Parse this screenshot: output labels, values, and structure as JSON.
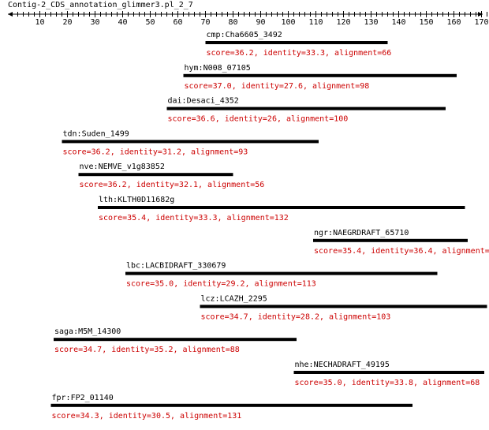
{
  "title": "Contig-2_CDS_annotation_glimmer3.pl_2_7",
  "colors": {
    "score": "#cc0000",
    "bar": "#000000",
    "axis": "#000000"
  },
  "axis": {
    "min": 1,
    "max": 172,
    "ticks": [
      10,
      20,
      30,
      40,
      50,
      60,
      70,
      80,
      90,
      100,
      110,
      120,
      130,
      140,
      150,
      160,
      170
    ]
  },
  "hits": [
    {
      "name": "cmp:Cha6605_3492",
      "start": 71,
      "end": 136,
      "score": "score=36.2, identity=33.3, alignment=66"
    },
    {
      "name": "hym:N008_07105",
      "start": 63,
      "end": 161,
      "score": "score=37.0, identity=27.6, alignment=98"
    },
    {
      "name": "dai:Desaci_4352",
      "start": 57,
      "end": 157,
      "score": "score=36.6, identity=26, alignment=100"
    },
    {
      "name": "tdn:Suden_1499",
      "start": 19,
      "end": 111,
      "score": "score=36.2, identity=31.2, alignment=93"
    },
    {
      "name": "nve:NEMVE_v1g83852",
      "start": 25,
      "end": 80,
      "score": "score=36.2, identity=32.1, alignment=56"
    },
    {
      "name": "lth:KLTH0D11682g",
      "start": 32,
      "end": 164,
      "score": "score=35.4, identity=33.3, alignment=132"
    },
    {
      "name": "ngr:NAEGRDRAFT_65710",
      "start": 110,
      "end": 165,
      "score": "score=35.4, identity=36.4, alignment=55"
    },
    {
      "name": "lbc:LACBIDRAFT_330679",
      "start": 42,
      "end": 154,
      "score": "score=35.0, identity=29.2, alignment=113"
    },
    {
      "name": "lcz:LCAZH_2295",
      "start": 69,
      "end": 172,
      "score": "score=34.7, identity=28.2, alignment=103"
    },
    {
      "name": "saga:M5M_14300",
      "start": 16,
      "end": 103,
      "score": "score=34.7, identity=35.2, alignment=88"
    },
    {
      "name": "nhe:NECHADRAFT_49195",
      "start": 103,
      "end": 171,
      "score": "score=35.0, identity=33.8, alignment=68"
    },
    {
      "name": "fpr:FP2_01140",
      "start": 15,
      "end": 145,
      "score": "score=34.3, identity=30.5, alignment=131"
    }
  ]
}
